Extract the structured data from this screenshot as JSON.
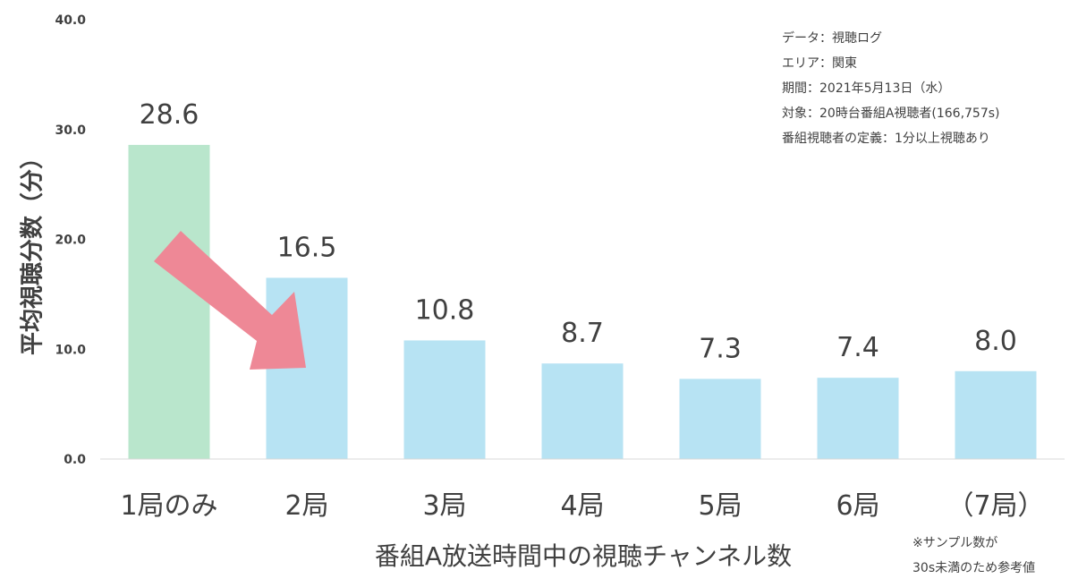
{
  "chart_data": {
    "type": "bar",
    "categories": [
      "1局のみ",
      "2局",
      "3局",
      "4局",
      "5局",
      "6局",
      "（7局）"
    ],
    "values": [
      28.6,
      16.5,
      10.8,
      8.7,
      7.3,
      7.4,
      8.0
    ],
    "value_labels": [
      "28.6",
      "16.5",
      "10.8",
      "8.7",
      "7.3",
      "7.4",
      "8.0"
    ],
    "bar_colors": [
      "#b9e6cc",
      "#b7e3f3",
      "#b7e3f3",
      "#b7e3f3",
      "#b7e3f3",
      "#b7e3f3",
      "#b7e3f3"
    ],
    "ylim": [
      0,
      40
    ],
    "y_ticks": [
      "0.0",
      "10.0",
      "20.0",
      "30.0",
      "40.0"
    ],
    "xlabel": "番組A放送時間中の視聴チャンネル数",
    "ylabel": "平均視聴分数（分）",
    "grid": false,
    "annotations": {
      "arrow": {
        "color": "#ee8896",
        "from_category": "1局のみ",
        "to_category": "2局"
      }
    }
  },
  "notes": [
    "データ：視聴ログ",
    "エリア：関東",
    "期間：2021年5月13日（水）",
    "対象：20時台番組A視聴者(166,757s)",
    "番組視聴者の定義：1分以上視聴あり"
  ],
  "footnote": [
    "※サンプル数が",
    "30s未満のため参考値"
  ]
}
